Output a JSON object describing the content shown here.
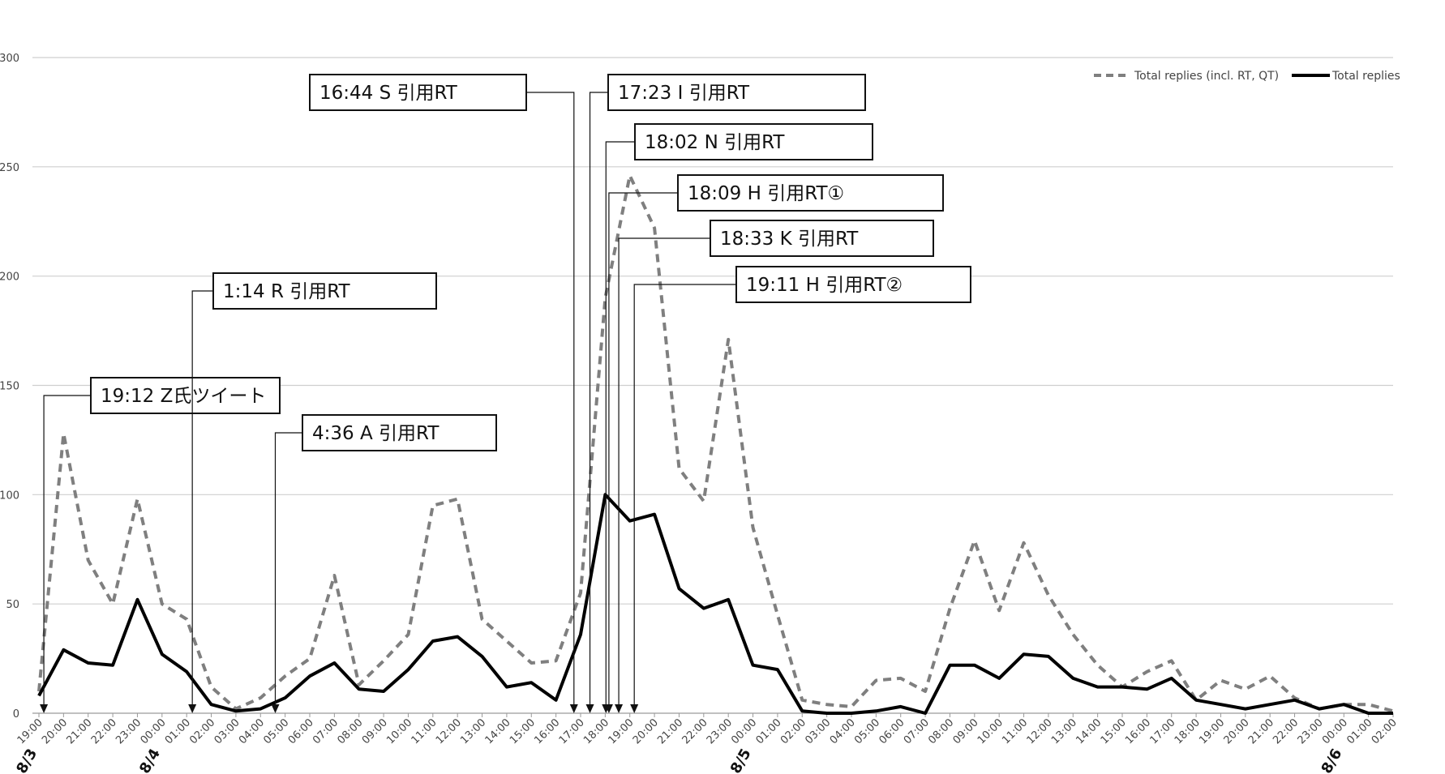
{
  "chart_data": {
    "type": "line",
    "x": [
      "19:00",
      "20:00",
      "21:00",
      "22:00",
      "23:00",
      "00:00",
      "01:00",
      "02:00",
      "03:00",
      "04:00",
      "05:00",
      "06:00",
      "07:00",
      "08:00",
      "09:00",
      "10:00",
      "11:00",
      "12:00",
      "13:00",
      "14:00",
      "15:00",
      "16:00",
      "17:00",
      "18:00",
      "19:00",
      "20:00",
      "21:00",
      "22:00",
      "23:00",
      "00:00",
      "01:00",
      "02:00",
      "03:00",
      "04:00",
      "05:00",
      "06:00",
      "07:00",
      "08:00",
      "09:00",
      "10:00",
      "11:00",
      "12:00",
      "13:00",
      "14:00",
      "15:00",
      "16:00",
      "17:00",
      "18:00",
      "19:00",
      "20:00",
      "21:00",
      "22:00",
      "23:00",
      "00:00",
      "01:00",
      "02:00"
    ],
    "date_labels": [
      {
        "text": "8/3",
        "index": 0
      },
      {
        "text": "8/4",
        "index": 5
      },
      {
        "text": "8/5",
        "index": 29
      },
      {
        "text": "8/6",
        "index": 53
      }
    ],
    "series": [
      {
        "name": "Total replies (incl. RT, QT)",
        "style": "dashed",
        "color": "#7f7f7f",
        "values": [
          10,
          128,
          70,
          50,
          98,
          50,
          43,
          12,
          2,
          7,
          17,
          25,
          63,
          13,
          24,
          36,
          95,
          98,
          43,
          33,
          23,
          24,
          55,
          190,
          246,
          222,
          112,
          97,
          171,
          85,
          45,
          6,
          4,
          3,
          15,
          16,
          10,
          48,
          79,
          47,
          78,
          54,
          36,
          22,
          12,
          19,
          24,
          6,
          15,
          11,
          17,
          7,
          2,
          4,
          4,
          1
        ]
      },
      {
        "name": "Total replies",
        "style": "solid",
        "color": "#000000",
        "values": [
          8,
          29,
          23,
          22,
          52,
          27,
          19,
          4,
          1,
          2,
          7,
          17,
          23,
          11,
          10,
          20,
          33,
          35,
          26,
          12,
          14,
          6,
          36,
          100,
          88,
          91,
          57,
          48,
          52,
          22,
          20,
          1,
          0,
          0,
          1,
          3,
          0,
          22,
          22,
          16,
          27,
          26,
          16,
          12,
          12,
          11,
          16,
          6,
          4,
          2,
          4,
          6,
          2,
          4,
          0,
          0
        ]
      }
    ],
    "ylim": [
      0,
      300
    ],
    "yticks": [
      0,
      50,
      100,
      150,
      200,
      250,
      300
    ],
    "grid": true,
    "legend_position": "top-right",
    "annotations": [
      {
        "text": "19:12 Z氏ツイート",
        "x_index": 0.2
      },
      {
        "text": "1:14 R 引用RT",
        "x_index": 6.23
      },
      {
        "text": "4:36 A 引用RT",
        "x_index": 9.6
      },
      {
        "text": "16:44 S 引用RT",
        "x_index": 21.73
      },
      {
        "text": "17:23 I 引用RT",
        "x_index": 22.38
      },
      {
        "text": "18:02 N 引用RT",
        "x_index": 23.03
      },
      {
        "text": "18:09 H 引用RT①",
        "x_index": 23.15
      },
      {
        "text": "18:33 K 引用RT",
        "x_index": 23.55
      },
      {
        "text": "19:11 H 引用RT②",
        "x_index": 24.18
      }
    ]
  }
}
